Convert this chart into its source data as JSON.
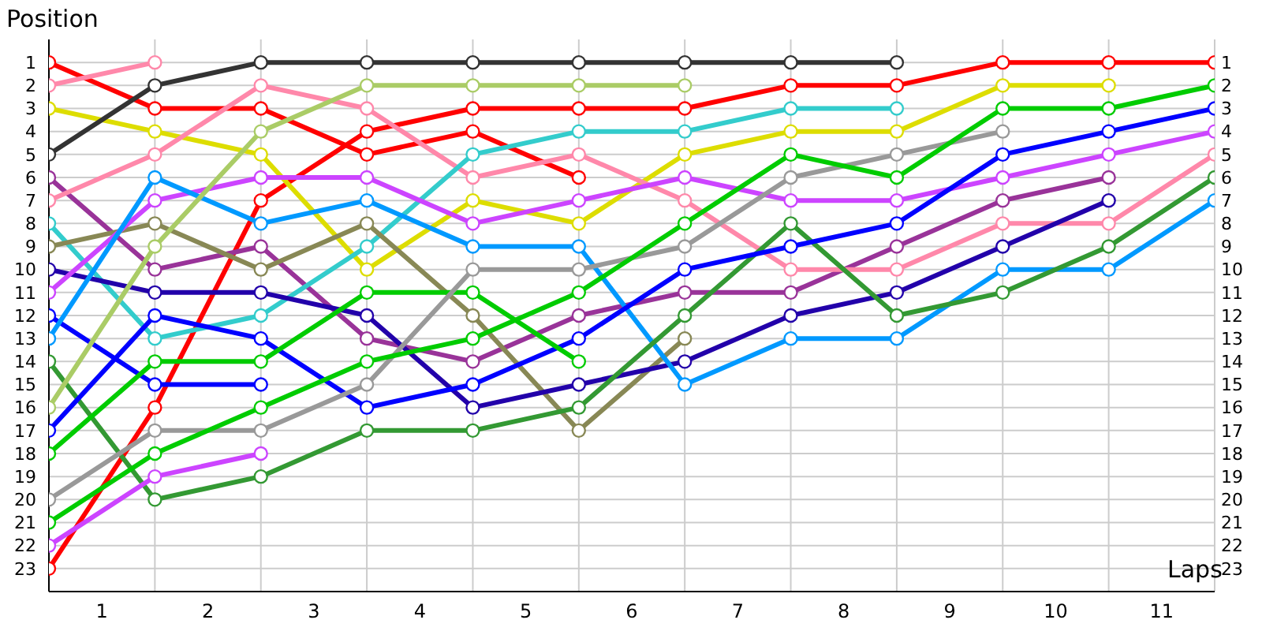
{
  "chart_data": {
    "type": "line",
    "xlabel": "Laps",
    "ylabel": "Position",
    "x": [
      0,
      1,
      2,
      3,
      4,
      5,
      6,
      7,
      8,
      9,
      10,
      11
    ],
    "xlim": [
      0,
      11
    ],
    "xticks": [
      {
        "value": 0,
        "label": null
      },
      {
        "value": 0.5,
        "label": "1"
      },
      {
        "value": 1,
        "label": null
      },
      {
        "value": 1.5,
        "label": "2"
      },
      {
        "value": 2,
        "label": null
      },
      {
        "value": 2.5,
        "label": "3"
      },
      {
        "value": 3,
        "label": null
      },
      {
        "value": 3.5,
        "label": "4"
      },
      {
        "value": 4,
        "label": null
      },
      {
        "value": 4.5,
        "label": "5"
      },
      {
        "value": 5,
        "label": null
      },
      {
        "value": 5.5,
        "label": "6"
      },
      {
        "value": 6,
        "label": null
      },
      {
        "value": 6.5,
        "label": "7"
      },
      {
        "value": 7,
        "label": null
      },
      {
        "value": 7.5,
        "label": "8"
      },
      {
        "value": 8,
        "label": null
      },
      {
        "value": 8.5,
        "label": "9"
      },
      {
        "value": 9,
        "label": null
      },
      {
        "value": 9.5,
        "label": "10"
      },
      {
        "value": 10,
        "label": null
      },
      {
        "value": 10.5,
        "label": "11"
      },
      {
        "value": 11,
        "label": null
      }
    ],
    "ylim": [
      24,
      0
    ],
    "yticks": [
      1,
      2,
      3,
      4,
      5,
      6,
      7,
      8,
      9,
      10,
      11,
      12,
      13,
      14,
      15,
      16,
      17,
      18,
      19,
      20,
      21,
      22,
      23
    ],
    "y2lim": [
      24,
      0
    ],
    "y2ticks": [
      1,
      2,
      3,
      4,
      5,
      6,
      7,
      8,
      9,
      10,
      11,
      12,
      13,
      14,
      15,
      16,
      17,
      18,
      19,
      20,
      21,
      22,
      23
    ],
    "grid": true,
    "marker": "circle",
    "line_style": "solid",
    "series": [
      {
        "color": "#ff0000",
        "values": [
          1,
          3,
          3,
          5,
          4,
          6,
          null,
          null,
          null,
          null,
          null,
          null
        ]
      },
      {
        "color": "#ff0000",
        "values": [
          23,
          16,
          7,
          4,
          3,
          3,
          3,
          2,
          2,
          1,
          1,
          1
        ]
      },
      {
        "color": "#ff88aa",
        "values": [
          2,
          1,
          null,
          null,
          null,
          null,
          null,
          null,
          null,
          null,
          null,
          null
        ]
      },
      {
        "color": "#dddd00",
        "values": [
          3,
          4,
          5,
          10,
          7,
          8,
          5,
          4,
          4,
          2,
          2,
          null
        ]
      },
      {
        "color": "#333333",
        "values": [
          5,
          2,
          1,
          1,
          1,
          1,
          1,
          1,
          1,
          null,
          null,
          null
        ]
      },
      {
        "color": "#993399",
        "values": [
          6,
          10,
          9,
          13,
          14,
          12,
          11,
          11,
          9,
          7,
          6,
          null
        ]
      },
      {
        "color": "#ff88aa",
        "values": [
          7,
          5,
          2,
          3,
          6,
          5,
          7,
          10,
          10,
          8,
          8,
          5
        ]
      },
      {
        "color": "#33cccc",
        "values": [
          8,
          13,
          12,
          9,
          5,
          4,
          4,
          3,
          3,
          null,
          null,
          null
        ]
      },
      {
        "color": "#888855",
        "values": [
          9,
          8,
          10,
          8,
          12,
          17,
          13,
          null,
          null,
          null,
          null,
          null
        ]
      },
      {
        "color": "#2200aa",
        "values": [
          10,
          11,
          11,
          12,
          16,
          15,
          14,
          12,
          11,
          9,
          7,
          null
        ]
      },
      {
        "color": "#cc44ff",
        "values": [
          11,
          7,
          6,
          6,
          8,
          7,
          6,
          7,
          7,
          6,
          5,
          4
        ]
      },
      {
        "color": "#0000ff",
        "values": [
          12,
          15,
          15,
          null,
          null,
          null,
          null,
          null,
          null,
          null,
          null,
          null
        ]
      },
      {
        "color": "#0099ff",
        "values": [
          13,
          6,
          8,
          7,
          9,
          9,
          15,
          13,
          13,
          10,
          10,
          7
        ]
      },
      {
        "color": "#339933",
        "values": [
          14,
          20,
          19,
          17,
          17,
          16,
          12,
          8,
          12,
          11,
          9,
          6
        ]
      },
      {
        "color": "#aacc66",
        "values": [
          16,
          9,
          4,
          2,
          2,
          2,
          2,
          null,
          null,
          null,
          null,
          null
        ]
      },
      {
        "color": "#0000ff",
        "values": [
          17,
          12,
          13,
          16,
          15,
          13,
          10,
          9,
          8,
          5,
          4,
          3
        ]
      },
      {
        "color": "#00cc00",
        "values": [
          18,
          14,
          14,
          11,
          11,
          14,
          null,
          null,
          null,
          null,
          null,
          null
        ]
      },
      {
        "color": "#999999",
        "values": [
          20,
          17,
          17,
          15,
          10,
          10,
          9,
          6,
          5,
          4,
          null,
          null
        ]
      },
      {
        "color": "#00cc00",
        "values": [
          21,
          18,
          16,
          14,
          13,
          11,
          8,
          5,
          6,
          3,
          3,
          2
        ]
      },
      {
        "color": "#cc44ff",
        "values": [
          22,
          19,
          18,
          null,
          null,
          null,
          null,
          null,
          null,
          null,
          null,
          null
        ]
      }
    ]
  }
}
